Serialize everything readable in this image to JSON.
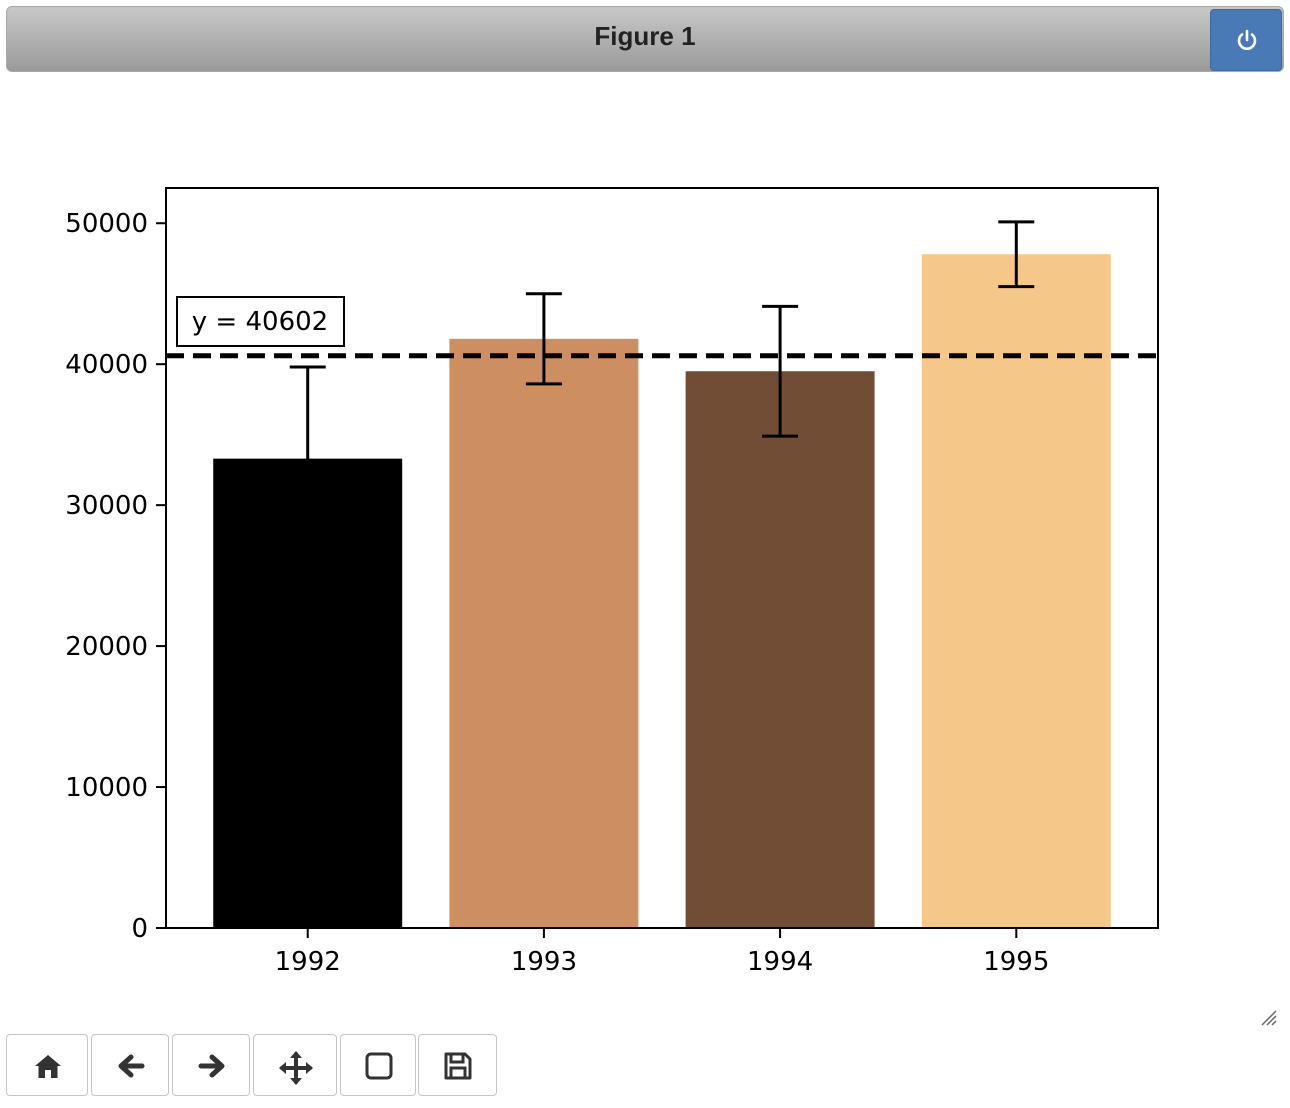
{
  "window": {
    "title": "Figure 1",
    "power_icon": "power-icon"
  },
  "toolbar": {
    "buttons": [
      {
        "name": "home-button",
        "icon": "home-icon"
      },
      {
        "name": "back-button",
        "icon": "arrow-left-icon"
      },
      {
        "name": "forward-button",
        "icon": "arrow-right-icon"
      },
      {
        "name": "pan-button",
        "icon": "move-icon"
      },
      {
        "name": "zoom-button",
        "icon": "square-icon"
      },
      {
        "name": "save-button",
        "icon": "floppy-disk-icon"
      }
    ]
  },
  "chart_data": {
    "type": "bar",
    "categories": [
      "1992",
      "1993",
      "1994",
      "1995"
    ],
    "values": [
      33300,
      41800,
      39500,
      47800
    ],
    "error": [
      6500,
      3200,
      4600,
      2300
    ],
    "colors": [
      "#000000",
      "#cd8e62",
      "#714d35",
      "#f5c889"
    ],
    "ylim": [
      0,
      52500
    ],
    "yticks": [
      0,
      10000,
      20000,
      30000,
      40000,
      50000
    ],
    "ytick_labels": [
      "0",
      "10000",
      "20000",
      "30000",
      "40000",
      "50000"
    ],
    "hline": {
      "y": 40602,
      "label": "y = 40602",
      "style": "dashed",
      "color": "#000000"
    },
    "grid": false,
    "title": "",
    "xlabel": "",
    "ylabel": ""
  }
}
